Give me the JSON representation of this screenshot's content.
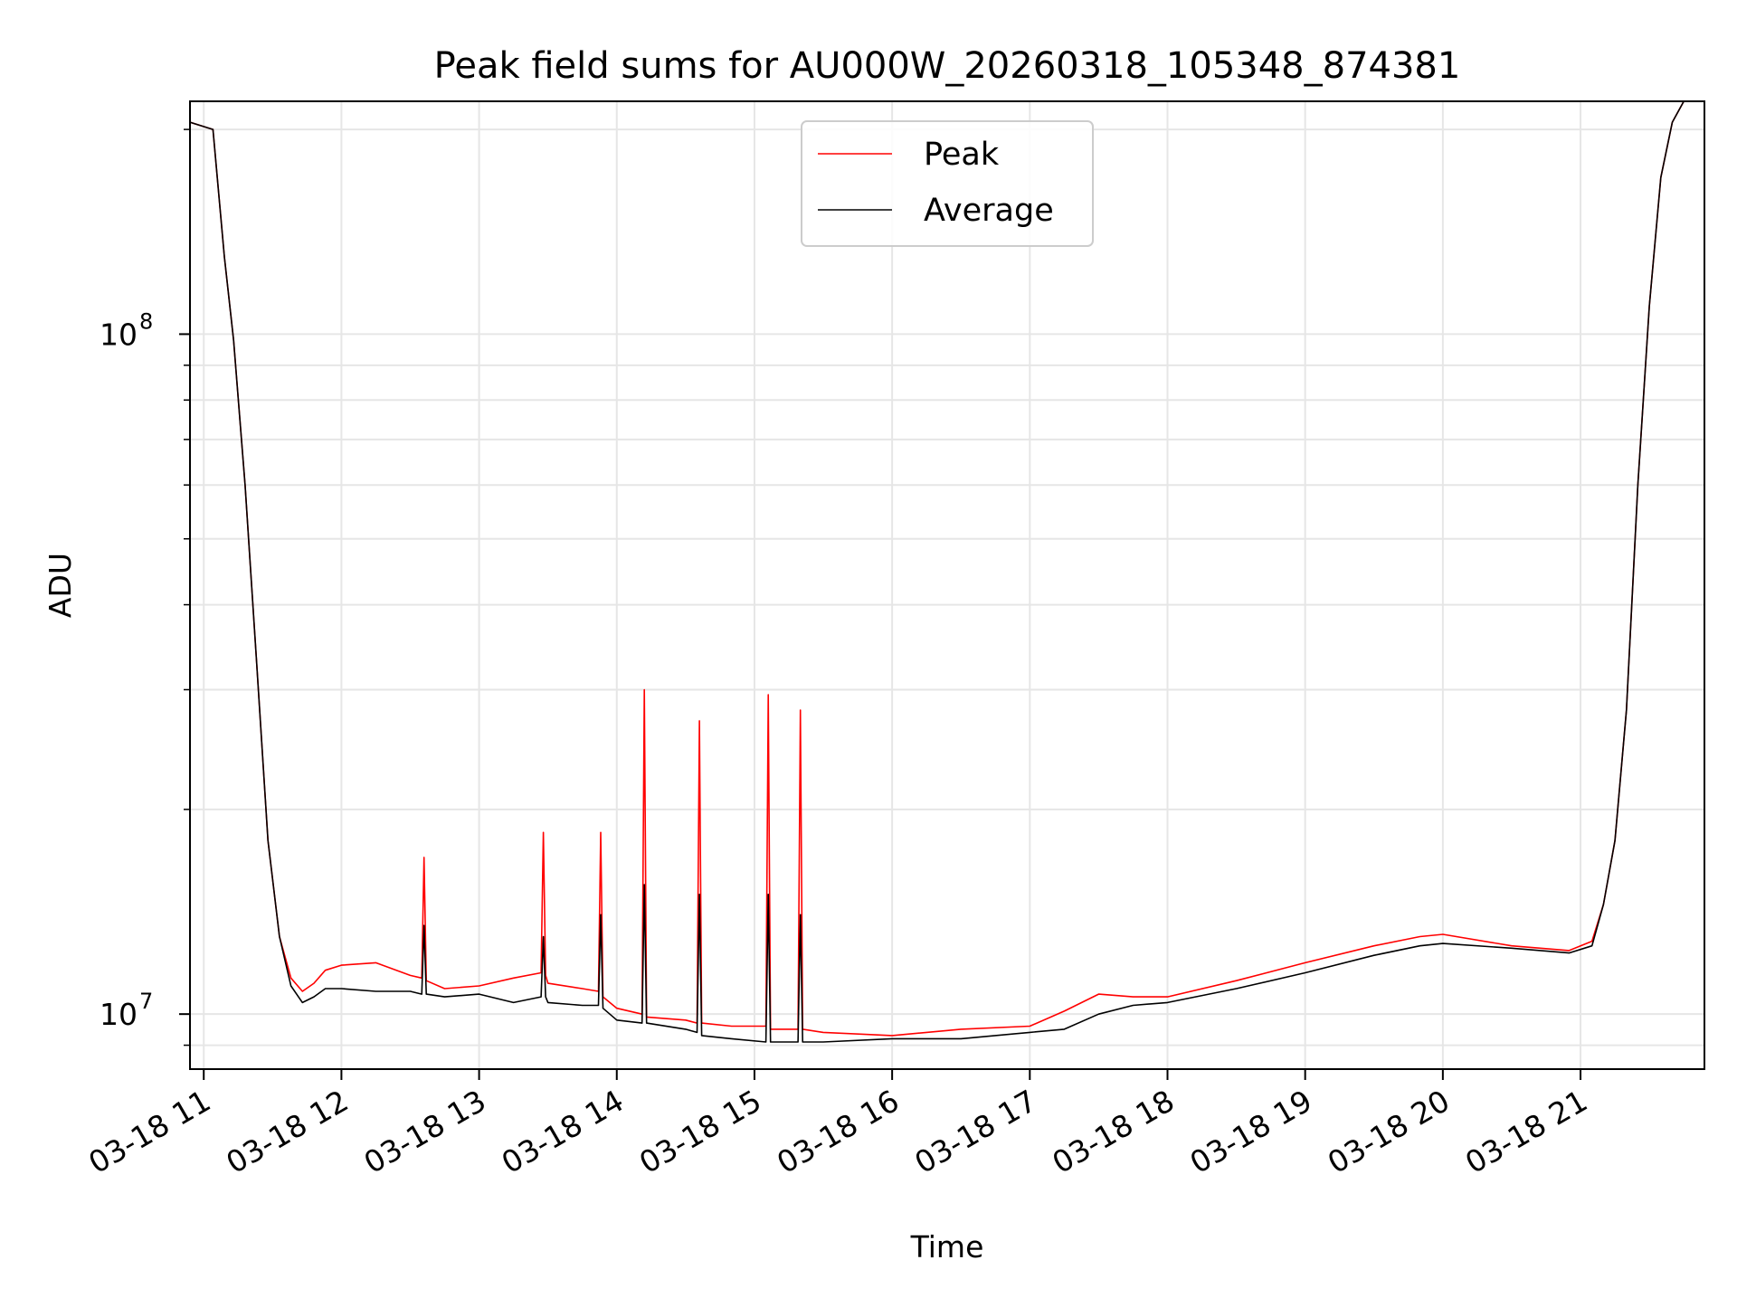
{
  "chart_data": {
    "type": "line",
    "title": "Peak field sums for AU000W_20260318_105348_874381",
    "xlabel": "Time",
    "ylabel": "ADU",
    "yscale": "log",
    "grid": true,
    "legend_placement": "upper center",
    "xlim": [
      "2026-03-18 10:54",
      "2026-03-18 21:54"
    ],
    "ylim": [
      8300000,
      220000000
    ],
    "x_ticks": [
      {
        "value": "2026-03-18 11:00",
        "label": "03-18 11"
      },
      {
        "value": "2026-03-18 12:00",
        "label": "03-18 12"
      },
      {
        "value": "2026-03-18 13:00",
        "label": "03-18 13"
      },
      {
        "value": "2026-03-18 14:00",
        "label": "03-18 14"
      },
      {
        "value": "2026-03-18 15:00",
        "label": "03-18 15"
      },
      {
        "value": "2026-03-18 16:00",
        "label": "03-18 16"
      },
      {
        "value": "2026-03-18 17:00",
        "label": "03-18 17"
      },
      {
        "value": "2026-03-18 18:00",
        "label": "03-18 18"
      },
      {
        "value": "2026-03-18 19:00",
        "label": "03-18 19"
      },
      {
        "value": "2026-03-18 20:00",
        "label": "03-18 20"
      },
      {
        "value": "2026-03-18 21:00",
        "label": "03-18 21"
      }
    ],
    "y_ticks": [
      {
        "value": 10000000,
        "base": "10",
        "exp": "7"
      },
      {
        "value": 100000000,
        "base": "10",
        "exp": "8"
      }
    ],
    "series": [
      {
        "name": "Peak",
        "color": "#ff0000",
        "x": [
          "2026-03-18 10:54",
          "2026-03-18 11:04",
          "2026-03-18 11:09",
          "2026-03-18 11:13",
          "2026-03-18 11:18",
          "2026-03-18 11:23",
          "2026-03-18 11:28",
          "2026-03-18 11:33",
          "2026-03-18 11:38",
          "2026-03-18 11:43",
          "2026-03-18 11:48",
          "2026-03-18 11:53",
          "2026-03-18 12:00",
          "2026-03-18 12:15",
          "2026-03-18 12:30",
          "2026-03-18 12:35",
          "2026-03-18 12:36",
          "2026-03-18 12:37",
          "2026-03-18 12:45",
          "2026-03-18 13:00",
          "2026-03-18 13:15",
          "2026-03-18 13:27",
          "2026-03-18 13:28",
          "2026-03-18 13:29",
          "2026-03-18 13:30",
          "2026-03-18 13:45",
          "2026-03-18 13:52",
          "2026-03-18 13:53",
          "2026-03-18 13:54",
          "2026-03-18 14:00",
          "2026-03-18 14:11",
          "2026-03-18 14:12",
          "2026-03-18 14:13",
          "2026-03-18 14:30",
          "2026-03-18 14:35",
          "2026-03-18 14:36",
          "2026-03-18 14:37",
          "2026-03-18 14:50",
          "2026-03-18 15:05",
          "2026-03-18 15:06",
          "2026-03-18 15:07",
          "2026-03-18 15:19",
          "2026-03-18 15:20",
          "2026-03-18 15:21",
          "2026-03-18 15:30",
          "2026-03-18 16:00",
          "2026-03-18 16:30",
          "2026-03-18 17:00",
          "2026-03-18 17:15",
          "2026-03-18 17:30",
          "2026-03-18 17:45",
          "2026-03-18 18:00",
          "2026-03-18 18:30",
          "2026-03-18 19:00",
          "2026-03-18 19:30",
          "2026-03-18 19:50",
          "2026-03-18 20:00",
          "2026-03-18 20:30",
          "2026-03-18 20:55",
          "2026-03-18 21:05",
          "2026-03-18 21:10",
          "2026-03-18 21:15",
          "2026-03-18 21:20",
          "2026-03-18 21:25",
          "2026-03-18 21:30",
          "2026-03-18 21:35",
          "2026-03-18 21:40",
          "2026-03-18 21:45",
          "2026-03-18 21:50"
        ],
        "values": [
          205000000,
          200000000,
          130000000,
          98000000,
          60000000,
          33000000,
          18000000,
          13000000,
          11300000,
          10800000,
          11100000,
          11600000,
          11800000,
          11900000,
          11400000,
          11300000,
          17000000,
          11200000,
          10900000,
          11000000,
          11300000,
          11500000,
          18500000,
          11400000,
          11100000,
          10900000,
          10800000,
          18500000,
          10600000,
          10200000,
          10000000,
          30000000,
          9900000,
          9800000,
          9700000,
          27000000,
          9700000,
          9600000,
          9600000,
          29500000,
          9500000,
          9500000,
          28000000,
          9500000,
          9400000,
          9300000,
          9500000,
          9600000,
          10100000,
          10700000,
          10600000,
          10600000,
          11200000,
          11900000,
          12600000,
          13000000,
          13100000,
          12600000,
          12400000,
          12800000,
          14500000,
          18000000,
          28000000,
          60000000,
          110000000,
          170000000,
          205000000,
          220000000,
          220000000
        ]
      },
      {
        "name": "Average",
        "color": "#000000",
        "x": [
          "2026-03-18 10:54",
          "2026-03-18 11:04",
          "2026-03-18 11:09",
          "2026-03-18 11:13",
          "2026-03-18 11:18",
          "2026-03-18 11:23",
          "2026-03-18 11:28",
          "2026-03-18 11:33",
          "2026-03-18 11:38",
          "2026-03-18 11:43",
          "2026-03-18 11:48",
          "2026-03-18 11:53",
          "2026-03-18 12:00",
          "2026-03-18 12:15",
          "2026-03-18 12:30",
          "2026-03-18 12:35",
          "2026-03-18 12:36",
          "2026-03-18 12:37",
          "2026-03-18 12:45",
          "2026-03-18 13:00",
          "2026-03-18 13:15",
          "2026-03-18 13:27",
          "2026-03-18 13:28",
          "2026-03-18 13:29",
          "2026-03-18 13:30",
          "2026-03-18 13:45",
          "2026-03-18 13:52",
          "2026-03-18 13:53",
          "2026-03-18 13:54",
          "2026-03-18 14:00",
          "2026-03-18 14:11",
          "2026-03-18 14:12",
          "2026-03-18 14:13",
          "2026-03-18 14:30",
          "2026-03-18 14:35",
          "2026-03-18 14:36",
          "2026-03-18 14:37",
          "2026-03-18 14:50",
          "2026-03-18 15:05",
          "2026-03-18 15:06",
          "2026-03-18 15:07",
          "2026-03-18 15:19",
          "2026-03-18 15:20",
          "2026-03-18 15:21",
          "2026-03-18 15:30",
          "2026-03-18 16:00",
          "2026-03-18 16:30",
          "2026-03-18 17:00",
          "2026-03-18 17:15",
          "2026-03-18 17:30",
          "2026-03-18 17:45",
          "2026-03-18 18:00",
          "2026-03-18 18:30",
          "2026-03-18 19:00",
          "2026-03-18 19:30",
          "2026-03-18 19:50",
          "2026-03-18 20:00",
          "2026-03-18 20:30",
          "2026-03-18 20:55",
          "2026-03-18 21:05",
          "2026-03-18 21:10",
          "2026-03-18 21:15",
          "2026-03-18 21:20",
          "2026-03-18 21:25",
          "2026-03-18 21:30",
          "2026-03-18 21:35",
          "2026-03-18 21:40",
          "2026-03-18 21:45",
          "2026-03-18 21:50"
        ],
        "values": [
          205000000,
          200000000,
          130000000,
          98000000,
          60000000,
          33000000,
          18000000,
          13000000,
          11000000,
          10400000,
          10600000,
          10900000,
          10900000,
          10800000,
          10800000,
          10700000,
          13500000,
          10700000,
          10600000,
          10700000,
          10400000,
          10600000,
          13000000,
          10600000,
          10400000,
          10300000,
          10300000,
          14000000,
          10200000,
          9800000,
          9700000,
          15500000,
          9700000,
          9500000,
          9400000,
          15000000,
          9300000,
          9200000,
          9100000,
          15000000,
          9100000,
          9100000,
          14000000,
          9100000,
          9100000,
          9200000,
          9200000,
          9400000,
          9500000,
          10000000,
          10300000,
          10400000,
          10900000,
          11500000,
          12200000,
          12600000,
          12700000,
          12500000,
          12300000,
          12600000,
          14500000,
          18000000,
          28000000,
          60000000,
          110000000,
          170000000,
          205000000,
          220000000,
          220000000
        ]
      }
    ]
  }
}
